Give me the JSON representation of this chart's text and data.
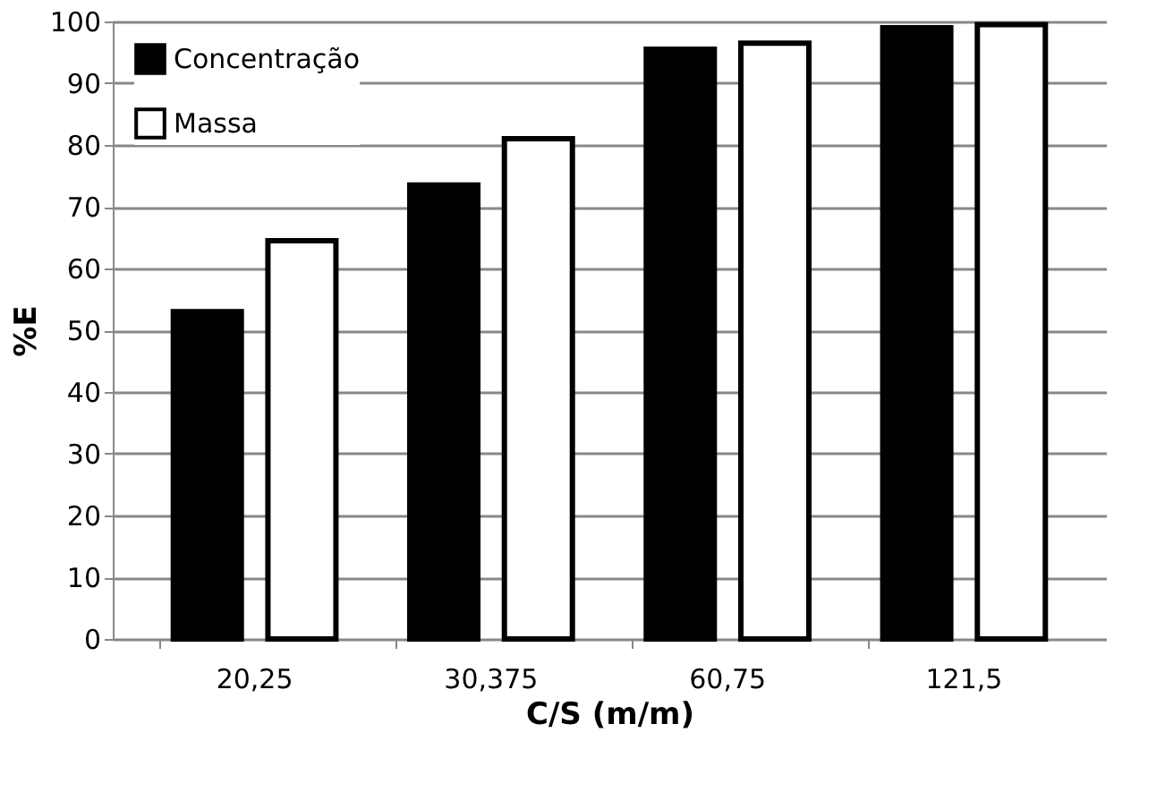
{
  "chart_data": {
    "type": "bar",
    "xlabel": "C/S (m/m)",
    "ylabel": "%E",
    "categories": [
      "20,25",
      "30,375",
      "60,75",
      "121,5"
    ],
    "series": [
      {
        "name": "Concentração",
        "color": "#000000",
        "values": [
          53,
          73.5,
          95.5,
          99
        ]
      },
      {
        "name": "Massa",
        "color": "#ffffff",
        "values": [
          64.5,
          81,
          96.5,
          99.5
        ]
      }
    ],
    "ylim": [
      0,
      100
    ],
    "yticks": [
      0,
      10,
      20,
      30,
      40,
      50,
      60,
      70,
      80,
      90,
      100
    ],
    "grid": "y",
    "legend": "top left"
  }
}
